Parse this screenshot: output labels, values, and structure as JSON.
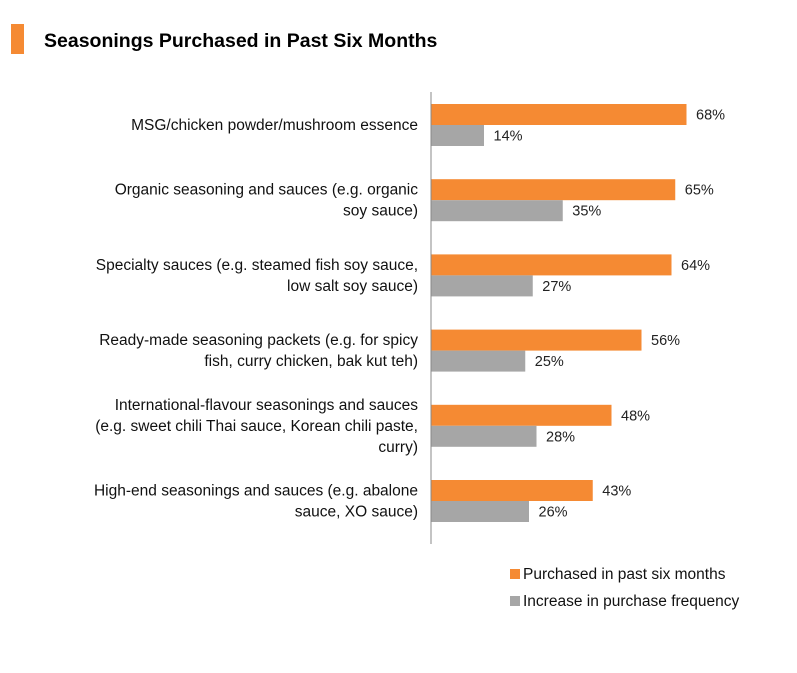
{
  "chart_data": {
    "type": "bar",
    "orientation": "horizontal",
    "title": "Seasonings Purchased in Past Six Months",
    "categories": [
      [
        "MSG/chicken powder/mushroom essence"
      ],
      [
        "Organic seasoning and sauces (e.g. organic",
        "soy sauce)"
      ],
      [
        "Specialty sauces (e.g. steamed fish soy sauce,",
        "low salt soy sauce)"
      ],
      [
        "Ready-made seasoning packets (e.g. for spicy",
        "fish, curry chicken, bak kut teh)"
      ],
      [
        "International-flavour seasonings and sauces",
        "(e.g. sweet chili Thai sauce, Korean chili paste,",
        "curry)"
      ],
      [
        "High-end seasonings and sauces (e.g. abalone",
        "sauce, XO sauce)"
      ]
    ],
    "series": [
      {
        "name": "Purchased in past six months",
        "color": "#f58a33",
        "values": [
          68,
          65,
          64,
          56,
          48,
          43
        ],
        "labels": [
          "68%",
          "65%",
          "64%",
          "56%",
          "48%",
          "43%"
        ]
      },
      {
        "name": "Increase in purchase frequency",
        "color": "#a6a6a6",
        "values": [
          14,
          35,
          27,
          25,
          28,
          26
        ],
        "labels": [
          "14%",
          "35%",
          "27%",
          "25%",
          "28%",
          "26%"
        ]
      }
    ],
    "xlim": [
      0,
      100
    ],
    "legend_position": "bottom-right",
    "grid": false
  },
  "colors": {
    "title_marker": "#f58a33",
    "axis": "#888888"
  }
}
